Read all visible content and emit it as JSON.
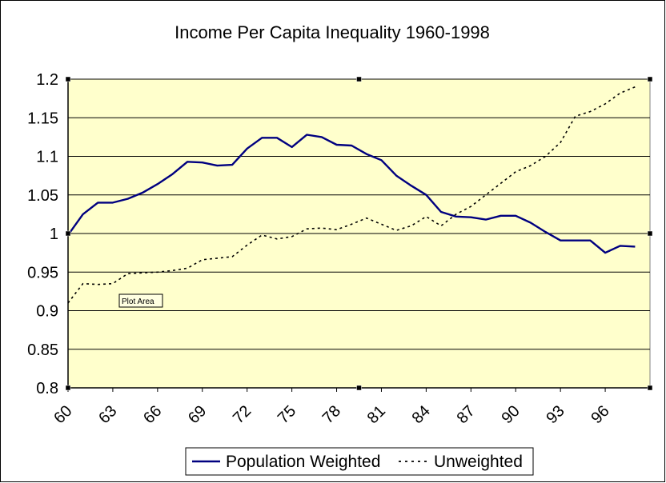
{
  "chart_data": {
    "type": "line",
    "title": "Income Per Capita Inequality 1960-1998",
    "xlabel": "",
    "ylabel": "",
    "x_start": 1960,
    "x_end": 1999,
    "x": [
      1960,
      1961,
      1962,
      1963,
      1964,
      1965,
      1966,
      1967,
      1968,
      1969,
      1970,
      1971,
      1972,
      1973,
      1974,
      1975,
      1976,
      1977,
      1978,
      1979,
      1980,
      1981,
      1982,
      1983,
      1984,
      1985,
      1986,
      1987,
      1988,
      1989,
      1990,
      1991,
      1992,
      1993,
      1994,
      1995,
      1996,
      1997,
      1998
    ],
    "x_tick_labels": [
      "60",
      "63",
      "66",
      "69",
      "72",
      "75",
      "78",
      "81",
      "84",
      "87",
      "90",
      "93",
      "96"
    ],
    "y_tick_labels": [
      "1.2",
      "1.15",
      "1.1",
      "1.05",
      "1",
      "0.95",
      "0.9",
      "0.85",
      "0.8"
    ],
    "ylim": [
      0.8,
      1.2
    ],
    "grid": true,
    "legend_position": "bottom",
    "plot_background": "#ffffcc",
    "series": [
      {
        "name": "Population Weighted",
        "style": "solid",
        "color": "#000080",
        "values": [
          0.998,
          1.025,
          1.04,
          1.04,
          1.045,
          1.053,
          1.064,
          1.077,
          1.093,
          1.092,
          1.088,
          1.089,
          1.11,
          1.124,
          1.124,
          1.112,
          1.128,
          1.125,
          1.115,
          1.114,
          1.103,
          1.095,
          1.075,
          1.062,
          1.05,
          1.028,
          1.022,
          1.021,
          1.018,
          1.023,
          1.023,
          1.014,
          1.002,
          0.991,
          0.991,
          0.991,
          0.975,
          0.984,
          0.983
        ]
      },
      {
        "name": "Unweighted",
        "style": "dotted",
        "color": "#000000",
        "values": [
          0.91,
          0.935,
          0.934,
          0.935,
          0.948,
          0.949,
          0.95,
          0.952,
          0.955,
          0.966,
          0.968,
          0.97,
          0.985,
          0.998,
          0.993,
          0.996,
          1.006,
          1.007,
          1.005,
          1.012,
          1.02,
          1.012,
          1.004,
          1.01,
          1.022,
          1.01,
          1.025,
          1.035,
          1.05,
          1.065,
          1.08,
          1.088,
          1.1,
          1.118,
          1.152,
          1.158,
          1.168,
          1.182,
          1.19
        ]
      }
    ],
    "annotation": "Plot Area"
  }
}
